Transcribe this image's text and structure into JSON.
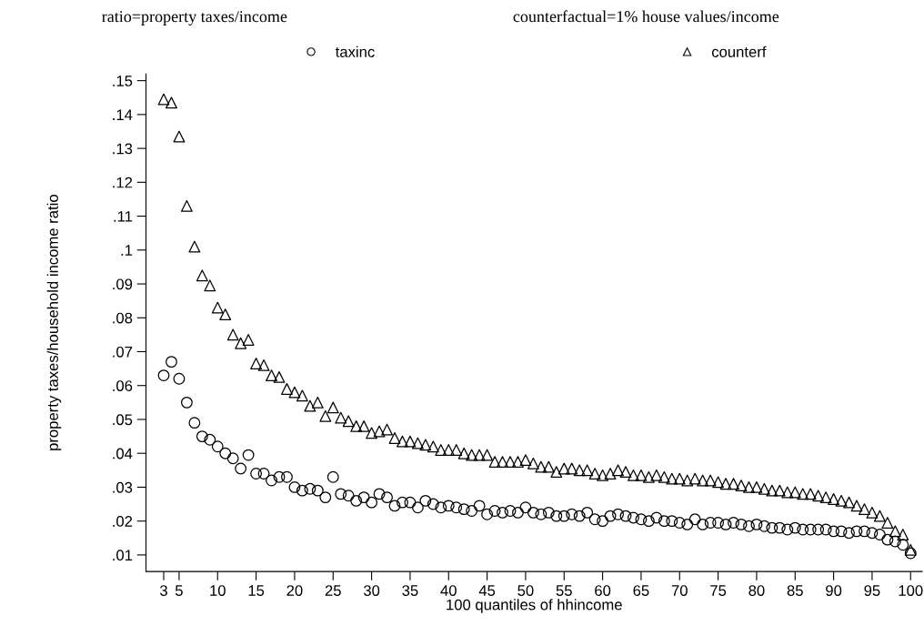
{
  "chart_data": {
    "type": "scatter",
    "xlabel": "100 quantiles of hhincome",
    "ylabel": "property taxes/household income ratio",
    "annotations": [
      "ratio=property taxes/income",
      "counterfactual=1% house values/income"
    ],
    "x": [
      3,
      4,
      5,
      6,
      7,
      8,
      9,
      10,
      11,
      12,
      13,
      14,
      15,
      16,
      17,
      18,
      19,
      20,
      21,
      22,
      23,
      24,
      25,
      26,
      27,
      28,
      29,
      30,
      31,
      32,
      33,
      34,
      35,
      36,
      37,
      38,
      39,
      40,
      41,
      42,
      43,
      44,
      45,
      46,
      47,
      48,
      49,
      50,
      51,
      52,
      53,
      54,
      55,
      56,
      57,
      58,
      59,
      60,
      61,
      62,
      63,
      64,
      65,
      66,
      67,
      68,
      69,
      70,
      71,
      72,
      73,
      74,
      75,
      76,
      77,
      78,
      79,
      80,
      81,
      82,
      83,
      84,
      85,
      86,
      87,
      88,
      89,
      90,
      91,
      92,
      93,
      94,
      95,
      96,
      97,
      98,
      99,
      100
    ],
    "series": [
      {
        "name": "taxinc",
        "color": "#000000",
        "marker": "circle",
        "values": [
          0.063,
          0.067,
          0.062,
          0.055,
          0.049,
          0.045,
          0.044,
          0.042,
          0.04,
          0.0385,
          0.0355,
          0.0395,
          0.034,
          0.034,
          0.032,
          0.033,
          0.033,
          0.03,
          0.029,
          0.0295,
          0.029,
          0.027,
          0.033,
          0.028,
          0.0275,
          0.026,
          0.027,
          0.0255,
          0.028,
          0.027,
          0.0245,
          0.0255,
          0.0255,
          0.024,
          0.026,
          0.025,
          0.024,
          0.0245,
          0.024,
          0.0235,
          0.023,
          0.0245,
          0.022,
          0.023,
          0.0225,
          0.023,
          0.0225,
          0.024,
          0.0225,
          0.022,
          0.0225,
          0.0215,
          0.0215,
          0.022,
          0.0215,
          0.0225,
          0.0205,
          0.02,
          0.0215,
          0.022,
          0.0215,
          0.021,
          0.0205,
          0.02,
          0.021,
          0.02,
          0.02,
          0.0195,
          0.019,
          0.0205,
          0.019,
          0.0195,
          0.0195,
          0.019,
          0.0195,
          0.019,
          0.0185,
          0.019,
          0.0185,
          0.018,
          0.018,
          0.0175,
          0.018,
          0.0175,
          0.0175,
          0.0175,
          0.0175,
          0.017,
          0.017,
          0.0165,
          0.017,
          0.017,
          0.0165,
          0.016,
          0.0145,
          0.014,
          0.013,
          0.0105
        ]
      },
      {
        "name": "counterf",
        "color": "#000000",
        "marker": "triangle",
        "values": [
          0.1445,
          0.1435,
          0.1335,
          0.113,
          0.101,
          0.0925,
          0.0895,
          0.083,
          0.081,
          0.075,
          0.0725,
          0.0735,
          0.0665,
          0.066,
          0.063,
          0.0625,
          0.059,
          0.058,
          0.057,
          0.054,
          0.055,
          0.051,
          0.0535,
          0.0505,
          0.0495,
          0.048,
          0.048,
          0.046,
          0.0465,
          0.047,
          0.0445,
          0.0435,
          0.0435,
          0.043,
          0.0425,
          0.042,
          0.041,
          0.041,
          0.041,
          0.04,
          0.0395,
          0.0395,
          0.0395,
          0.0375,
          0.0375,
          0.0375,
          0.0375,
          0.038,
          0.037,
          0.036,
          0.036,
          0.0345,
          0.0355,
          0.0355,
          0.035,
          0.035,
          0.034,
          0.0335,
          0.034,
          0.035,
          0.0345,
          0.0335,
          0.0335,
          0.033,
          0.0335,
          0.033,
          0.0325,
          0.0325,
          0.032,
          0.0325,
          0.032,
          0.032,
          0.0315,
          0.031,
          0.031,
          0.0305,
          0.03,
          0.03,
          0.0295,
          0.029,
          0.029,
          0.0285,
          0.0285,
          0.028,
          0.028,
          0.0275,
          0.027,
          0.0265,
          0.026,
          0.0255,
          0.0245,
          0.0235,
          0.0225,
          0.0215,
          0.0195,
          0.017,
          0.016,
          0.0115
        ]
      }
    ],
    "xlim": [
      0.7,
      101.5
    ],
    "ylim": [
      0.0051,
      0.152
    ],
    "xticks": [
      3,
      5,
      10,
      15,
      20,
      25,
      30,
      35,
      40,
      45,
      50,
      55,
      60,
      65,
      70,
      75,
      80,
      85,
      90,
      95,
      100
    ],
    "yticks": [
      {
        "value": 0.01,
        "label": ".01"
      },
      {
        "value": 0.02,
        "label": ".02"
      },
      {
        "value": 0.03,
        "label": ".03"
      },
      {
        "value": 0.04,
        "label": ".04"
      },
      {
        "value": 0.05,
        "label": ".05"
      },
      {
        "value": 0.06,
        "label": ".06"
      },
      {
        "value": 0.07,
        "label": ".07"
      },
      {
        "value": 0.08,
        "label": ".08"
      },
      {
        "value": 0.09,
        "label": ".09"
      },
      {
        "value": 0.1,
        "label": ".1"
      },
      {
        "value": 0.11,
        "label": ".11"
      },
      {
        "value": 0.12,
        "label": ".12"
      },
      {
        "value": 0.13,
        "label": ".13"
      },
      {
        "value": 0.14,
        "label": ".14"
      },
      {
        "value": 0.15,
        "label": ".15"
      }
    ],
    "grid": false,
    "legend": "top"
  }
}
